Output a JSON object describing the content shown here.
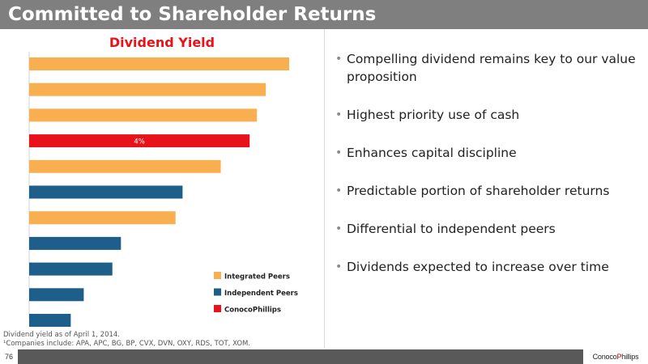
{
  "header": {
    "title": "Committed to Shareholder Returns"
  },
  "bullets": [
    "Compelling dividend remains key to our value proposition",
    "Highest priority use of cash",
    "Enhances capital discipline",
    "Predictable portion of shareholder returns",
    "Differential to independent peers",
    "Dividends expected to increase over time"
  ],
  "footnotes": {
    "line1": "Dividend yield as of April 1, 2014.",
    "line2": "¹Companies include: APA, APC, BG, BP, CVX, DVN, OXY, RDS, TOT, XOM."
  },
  "footer": {
    "page_number": "76",
    "logo_text": "ConocoPhillips"
  },
  "colors": {
    "integrated": "#f9ae4f",
    "independent": "#1d5f8a",
    "conocophillips": "#e8131a",
    "title_bar": "#7f7f7f"
  },
  "chart_data": {
    "type": "bar",
    "orientation": "horizontal",
    "title": "Dividend Yield",
    "relative_values": [
      1.0,
      0.91,
      0.876,
      0.848,
      0.737,
      0.59,
      0.563,
      0.353,
      0.32,
      0.21,
      0.16
    ],
    "groups": [
      "Integrated Peers",
      "Integrated Peers",
      "Integrated Peers",
      "ConocoPhillips",
      "Integrated Peers",
      "Independent Peers",
      "Integrated Peers",
      "Independent Peers",
      "Independent Peers",
      "Independent Peers",
      "Independent Peers"
    ],
    "data_labels": [
      "",
      "",
      "",
      "4%",
      "",
      "",
      "",
      "",
      "",
      "",
      ""
    ],
    "legend": [
      {
        "name": "Integrated Peers",
        "color": "#f9ae4f"
      },
      {
        "name": "Independent Peers",
        "color": "#1d5f8a"
      },
      {
        "name": "ConocoPhillips",
        "color": "#e8131a"
      }
    ],
    "legend_position": "bottom-right",
    "grid": false
  }
}
